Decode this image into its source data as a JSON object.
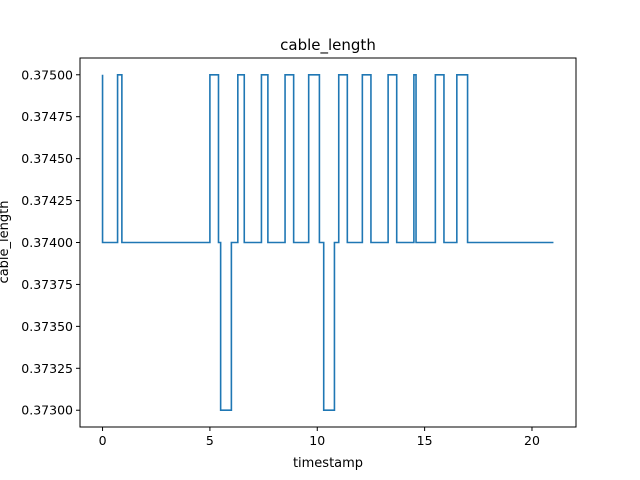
{
  "chart_data": {
    "type": "line",
    "step": "post",
    "title": "cable_length",
    "xlabel": "timestamp",
    "ylabel": "cable_length",
    "xlim": [
      -1.05,
      22.05
    ],
    "ylim": [
      0.3729,
      0.3751
    ],
    "xticks": [
      0,
      5,
      10,
      15,
      20
    ],
    "yticks": [
      0.373,
      0.37325,
      0.3735,
      0.37375,
      0.374,
      0.37425,
      0.3745,
      0.37475,
      0.375
    ],
    "grid": false,
    "color": "#1f77b4",
    "series": [
      {
        "x": [
          0.0,
          0.0,
          0.7,
          0.9,
          5.0,
          5.4,
          5.5,
          6.0,
          6.3,
          6.6,
          7.4,
          7.7,
          8.5,
          8.9,
          9.6,
          10.1,
          10.3,
          10.8,
          11.0,
          11.4,
          12.1,
          12.5,
          13.3,
          13.7,
          14.5,
          14.6,
          15.5,
          15.9,
          16.5,
          17.0,
          21.0
        ],
        "y": [
          0.375,
          0.374,
          0.375,
          0.374,
          0.375,
          0.374,
          0.373,
          0.374,
          0.375,
          0.374,
          0.375,
          0.374,
          0.375,
          0.374,
          0.375,
          0.374,
          0.373,
          0.374,
          0.375,
          0.374,
          0.375,
          0.374,
          0.375,
          0.374,
          0.375,
          0.374,
          0.375,
          0.374,
          0.375,
          0.374,
          0.374
        ]
      }
    ]
  }
}
